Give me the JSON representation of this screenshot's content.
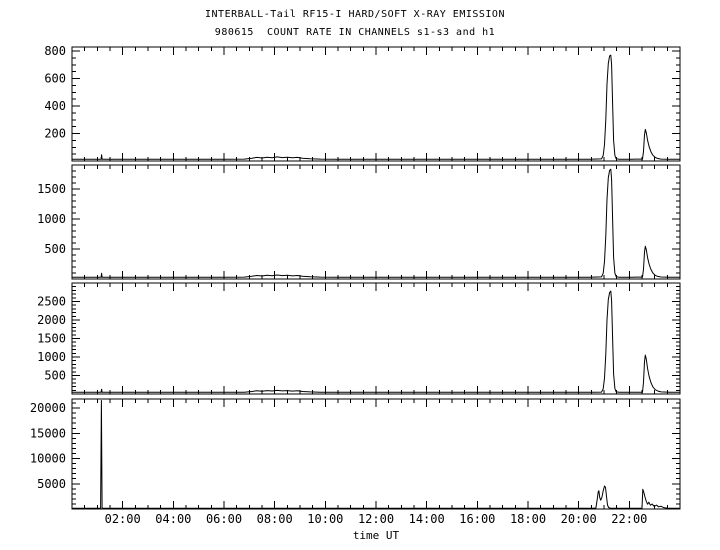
{
  "window": {
    "background": "#ffffff",
    "foreground": "#000000"
  },
  "chart_data": {
    "type": "line",
    "title": "INTERBALL-Tail RF15-I HARD/SOFT X-RAY EMISSION",
    "subtitle": "980615  COUNT RATE IN CHANNELS s1-s3 and h1",
    "xlabel": "time UT",
    "grid": false,
    "legend": "none",
    "line_color": "#000000",
    "axis_color": "#000000",
    "x_range_hours": [
      0,
      24
    ],
    "x_minor_step_hours": 0.5,
    "x_major_ticks": [
      {
        "hour": 2,
        "label": "02:00"
      },
      {
        "hour": 4,
        "label": "04:00"
      },
      {
        "hour": 6,
        "label": "06:00"
      },
      {
        "hour": 8,
        "label": "08:00"
      },
      {
        "hour": 10,
        "label": "10:00"
      },
      {
        "hour": 12,
        "label": "12:00"
      },
      {
        "hour": 14,
        "label": "14:00"
      },
      {
        "hour": 16,
        "label": "16:00"
      },
      {
        "hour": 18,
        "label": "18:00"
      },
      {
        "hour": 20,
        "label": "20:00"
      },
      {
        "hour": 22,
        "label": "22:00"
      }
    ],
    "panels": [
      {
        "channel": "s1",
        "ylim": [
          0,
          830
        ],
        "y_minor_step": 50,
        "yticks": [
          {
            "value": 200,
            "label": "200"
          },
          {
            "value": 400,
            "label": "400"
          },
          {
            "value": 600,
            "label": "600"
          },
          {
            "value": 800,
            "label": "800"
          }
        ],
        "points": [
          [
            0,
            13
          ],
          [
            1,
            13
          ],
          [
            1.15,
            13
          ],
          [
            1.17,
            45
          ],
          [
            1.19,
            13
          ],
          [
            2,
            13
          ],
          [
            3,
            13
          ],
          [
            4,
            13
          ],
          [
            5,
            13
          ],
          [
            6,
            13
          ],
          [
            6.8,
            14
          ],
          [
            7.1,
            20
          ],
          [
            7.3,
            26
          ],
          [
            7.5,
            22
          ],
          [
            7.7,
            28
          ],
          [
            7.9,
            24
          ],
          [
            8.1,
            30
          ],
          [
            8.3,
            25
          ],
          [
            8.5,
            28
          ],
          [
            8.7,
            23
          ],
          [
            8.9,
            26
          ],
          [
            9.1,
            20
          ],
          [
            9.4,
            16
          ],
          [
            9.8,
            14
          ],
          [
            10.5,
            13
          ],
          [
            11.5,
            13
          ],
          [
            12.5,
            13
          ],
          [
            13.5,
            13
          ],
          [
            14.5,
            13
          ],
          [
            15.5,
            13
          ],
          [
            16.5,
            13
          ],
          [
            17.5,
            13
          ],
          [
            18.5,
            13
          ],
          [
            19.5,
            13
          ],
          [
            20.4,
            13
          ],
          [
            20.9,
            15
          ],
          [
            20.97,
            40
          ],
          [
            21.02,
            120
          ],
          [
            21.07,
            300
          ],
          [
            21.12,
            560
          ],
          [
            21.17,
            710
          ],
          [
            21.22,
            765
          ],
          [
            21.27,
            770
          ],
          [
            21.3,
            700
          ],
          [
            21.34,
            420
          ],
          [
            21.38,
            150
          ],
          [
            21.43,
            40
          ],
          [
            21.48,
            16
          ],
          [
            21.6,
            13
          ],
          [
            22.1,
            13
          ],
          [
            22.52,
            14
          ],
          [
            22.56,
            70
          ],
          [
            22.6,
            190
          ],
          [
            22.63,
            230
          ],
          [
            22.67,
            205
          ],
          [
            22.72,
            150
          ],
          [
            22.78,
            105
          ],
          [
            22.85,
            68
          ],
          [
            22.93,
            42
          ],
          [
            23.02,
            26
          ],
          [
            23.12,
            18
          ],
          [
            23.25,
            14
          ],
          [
            23.6,
            13
          ],
          [
            24,
            13
          ]
        ]
      },
      {
        "channel": "s2",
        "ylim": [
          0,
          1900
        ],
        "y_minor_step": 100,
        "yticks": [
          {
            "value": 500,
            "label": "500"
          },
          {
            "value": 1000,
            "label": "1000"
          },
          {
            "value": 1500,
            "label": "1500"
          }
        ],
        "points": [
          [
            0,
            30
          ],
          [
            1,
            30
          ],
          [
            1.15,
            30
          ],
          [
            1.17,
            95
          ],
          [
            1.19,
            30
          ],
          [
            2,
            30
          ],
          [
            3,
            30
          ],
          [
            4,
            30
          ],
          [
            5,
            30
          ],
          [
            6,
            30
          ],
          [
            6.8,
            32
          ],
          [
            7.1,
            45
          ],
          [
            7.3,
            58
          ],
          [
            7.5,
            50
          ],
          [
            7.7,
            62
          ],
          [
            7.9,
            54
          ],
          [
            8.1,
            66
          ],
          [
            8.3,
            56
          ],
          [
            8.5,
            62
          ],
          [
            8.7,
            52
          ],
          [
            8.9,
            58
          ],
          [
            9.1,
            46
          ],
          [
            9.4,
            38
          ],
          [
            9.8,
            32
          ],
          [
            10.5,
            30
          ],
          [
            11.5,
            30
          ],
          [
            12.5,
            30
          ],
          [
            13.5,
            30
          ],
          [
            14.5,
            30
          ],
          [
            15.5,
            30
          ],
          [
            16.5,
            30
          ],
          [
            17.5,
            30
          ],
          [
            18.5,
            30
          ],
          [
            19.5,
            30
          ],
          [
            20.4,
            30
          ],
          [
            20.9,
            35
          ],
          [
            20.97,
            95
          ],
          [
            21.02,
            290
          ],
          [
            21.07,
            720
          ],
          [
            21.12,
            1330
          ],
          [
            21.17,
            1690
          ],
          [
            21.22,
            1810
          ],
          [
            21.27,
            1830
          ],
          [
            21.3,
            1660
          ],
          [
            21.34,
            1000
          ],
          [
            21.38,
            360
          ],
          [
            21.43,
            95
          ],
          [
            21.48,
            38
          ],
          [
            21.6,
            30
          ],
          [
            22.1,
            30
          ],
          [
            22.52,
            32
          ],
          [
            22.56,
            165
          ],
          [
            22.6,
            450
          ],
          [
            22.63,
            545
          ],
          [
            22.67,
            488
          ],
          [
            22.72,
            355
          ],
          [
            22.78,
            248
          ],
          [
            22.85,
            160
          ],
          [
            22.93,
            100
          ],
          [
            23.02,
            62
          ],
          [
            23.12,
            43
          ],
          [
            23.25,
            33
          ],
          [
            23.6,
            30
          ],
          [
            24,
            30
          ]
        ]
      },
      {
        "channel": "s3",
        "ylim": [
          0,
          3000
        ],
        "y_minor_step": 100,
        "yticks": [
          {
            "value": 500,
            "label": "500"
          },
          {
            "value": 1000,
            "label": "1000"
          },
          {
            "value": 1500,
            "label": "1500"
          },
          {
            "value": 2000,
            "label": "2000"
          },
          {
            "value": 2500,
            "label": "2500"
          }
        ],
        "points": [
          [
            0,
            45
          ],
          [
            1,
            45
          ],
          [
            1.15,
            45
          ],
          [
            1.17,
            130
          ],
          [
            1.19,
            45
          ],
          [
            2,
            45
          ],
          [
            3,
            45
          ],
          [
            4,
            45
          ],
          [
            5,
            45
          ],
          [
            6,
            45
          ],
          [
            6.8,
            48
          ],
          [
            7.1,
            68
          ],
          [
            7.3,
            88
          ],
          [
            7.5,
            75
          ],
          [
            7.7,
            92
          ],
          [
            7.9,
            80
          ],
          [
            8.1,
            98
          ],
          [
            8.3,
            84
          ],
          [
            8.5,
            92
          ],
          [
            8.7,
            78
          ],
          [
            8.9,
            86
          ],
          [
            9.1,
            68
          ],
          [
            9.4,
            56
          ],
          [
            9.8,
            48
          ],
          [
            10.5,
            45
          ],
          [
            11.5,
            45
          ],
          [
            12.5,
            45
          ],
          [
            13.5,
            45
          ],
          [
            14.5,
            45
          ],
          [
            15.5,
            45
          ],
          [
            16.5,
            45
          ],
          [
            17.5,
            45
          ],
          [
            18.5,
            45
          ],
          [
            19.5,
            45
          ],
          [
            20.4,
            45
          ],
          [
            20.9,
            52
          ],
          [
            20.97,
            140
          ],
          [
            21.02,
            430
          ],
          [
            21.07,
            1080
          ],
          [
            21.12,
            2000
          ],
          [
            21.17,
            2550
          ],
          [
            21.22,
            2740
          ],
          [
            21.27,
            2780
          ],
          [
            21.3,
            2520
          ],
          [
            21.34,
            1520
          ],
          [
            21.38,
            540
          ],
          [
            21.43,
            145
          ],
          [
            21.48,
            58
          ],
          [
            21.6,
            45
          ],
          [
            22.1,
            45
          ],
          [
            22.52,
            48
          ],
          [
            22.56,
            320
          ],
          [
            22.6,
            870
          ],
          [
            22.63,
            1050
          ],
          [
            22.67,
            940
          ],
          [
            22.72,
            685
          ],
          [
            22.78,
            478
          ],
          [
            22.85,
            310
          ],
          [
            22.93,
            192
          ],
          [
            23.02,
            120
          ],
          [
            23.12,
            82
          ],
          [
            23.25,
            58
          ],
          [
            23.6,
            46
          ],
          [
            24,
            45
          ]
        ]
      },
      {
        "channel": "h1",
        "ylim": [
          0,
          21800
        ],
        "y_minor_step": 1000,
        "yticks": [
          {
            "value": 5000,
            "label": "5000"
          },
          {
            "value": 10000,
            "label": "10000"
          },
          {
            "value": 15000,
            "label": "15000"
          },
          {
            "value": 20000,
            "label": "20000"
          }
        ],
        "points": [
          [
            0,
            130
          ],
          [
            0.6,
            130
          ],
          [
            1.13,
            130
          ],
          [
            1.16,
            21500
          ],
          [
            1.19,
            130
          ],
          [
            2,
            130
          ],
          [
            3,
            130
          ],
          [
            4,
            130
          ],
          [
            5,
            130
          ],
          [
            6,
            130
          ],
          [
            7,
            130
          ],
          [
            8,
            140
          ],
          [
            9,
            130
          ],
          [
            10,
            130
          ],
          [
            11,
            130
          ],
          [
            12,
            130
          ],
          [
            13,
            130
          ],
          [
            14,
            130
          ],
          [
            15,
            130
          ],
          [
            16,
            130
          ],
          [
            17,
            130
          ],
          [
            18,
            130
          ],
          [
            19,
            130
          ],
          [
            20,
            130
          ],
          [
            20.55,
            140
          ],
          [
            20.68,
            200
          ],
          [
            20.73,
            1900
          ],
          [
            20.77,
            3400
          ],
          [
            20.8,
            3600
          ],
          [
            20.83,
            2300
          ],
          [
            20.87,
            1750
          ],
          [
            20.92,
            2400
          ],
          [
            20.97,
            3600
          ],
          [
            21.02,
            4550
          ],
          [
            21.06,
            4300
          ],
          [
            21.1,
            2500
          ],
          [
            21.14,
            800
          ],
          [
            21.18,
            300
          ],
          [
            21.25,
            160
          ],
          [
            21.8,
            130
          ],
          [
            22.3,
            130
          ],
          [
            22.5,
            160
          ],
          [
            22.53,
            3900
          ],
          [
            22.57,
            3300
          ],
          [
            22.62,
            2350
          ],
          [
            22.67,
            1500
          ],
          [
            22.72,
            950
          ],
          [
            22.77,
            1350
          ],
          [
            22.83,
            750
          ],
          [
            22.9,
            1000
          ],
          [
            22.98,
            520
          ],
          [
            23.08,
            780
          ],
          [
            23.15,
            420
          ],
          [
            23.25,
            560
          ],
          [
            23.35,
            280
          ],
          [
            23.5,
            170
          ],
          [
            23.8,
            130
          ],
          [
            24,
            130
          ]
        ]
      }
    ]
  }
}
